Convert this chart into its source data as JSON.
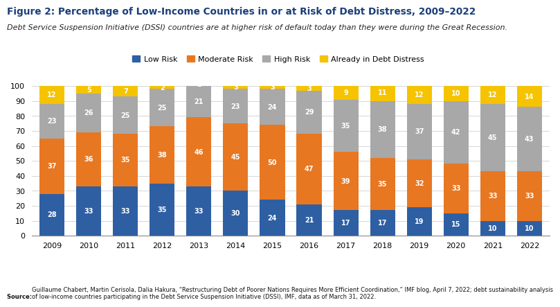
{
  "years": [
    "2009",
    "2010",
    "2011",
    "2012",
    "2013",
    "2014",
    "2015",
    "2016",
    "2017",
    "2018",
    "2019",
    "2020",
    "2021",
    "2022"
  ],
  "low_risk": [
    28,
    33,
    33,
    35,
    33,
    30,
    24,
    21,
    17,
    17,
    19,
    15,
    10,
    10
  ],
  "moderate_risk": [
    37,
    36,
    35,
    38,
    46,
    45,
    50,
    47,
    39,
    35,
    32,
    33,
    33,
    33
  ],
  "high_risk": [
    23,
    26,
    25,
    25,
    21,
    23,
    24,
    29,
    35,
    38,
    37,
    42,
    45,
    43
  ],
  "debt_distress": [
    12,
    5,
    7,
    2,
    2,
    3,
    3,
    3,
    9,
    11,
    12,
    10,
    12,
    14
  ],
  "colors": {
    "low_risk": "#2E5FA3",
    "moderate_risk": "#E87722",
    "high_risk": "#A8A8A8",
    "debt_distress": "#F5C300"
  },
  "title": "Figure 2: Percentage of Low-Income Countries in or at Risk of Debt Distress, 2009–2022",
  "subtitle": "Debt Service Suspension Initiative (DSSI) countries are at higher risk of default today than they were during the Great Recession.",
  "legend_labels": [
    "Low Risk",
    "Moderate Risk",
    "High Risk",
    "Already in Debt Distress"
  ],
  "ylim": [
    0,
    100
  ],
  "source_text_bold": "Source: ",
  "source_text": "Guillaume Chabert, Martin Cerisola, Dalia Hakura, “Restructuring Debt of Poorer Nations Requires More Efficient Coordination,” IMF blog, April 7, 2022; debt sustainability analysis of low-income countries participating in the Debt Service Suspension Initiative (DSSI), IMF, data as of March 31, 2022.",
  "title_color": "#1B3F7B",
  "subtitle_color": "#222222",
  "background_color": "#ffffff"
}
